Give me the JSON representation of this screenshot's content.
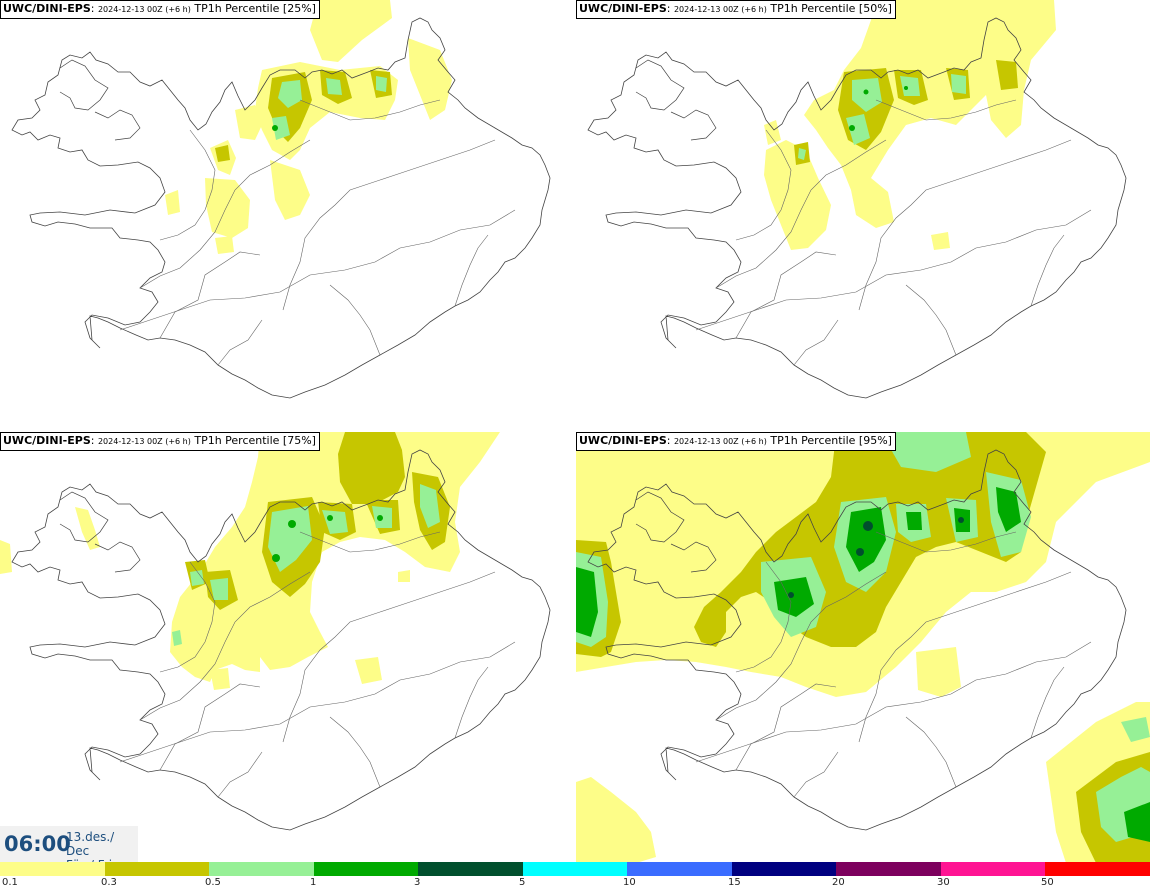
{
  "panels": [
    {
      "model": "UWC/DINI-EPS",
      "date_run": "2024-12-13 00Z (+6 h)",
      "title": "TP1h Percentile [25%]"
    },
    {
      "model": "UWC/DINI-EPS",
      "date_run": "2024-12-13 00Z (+6 h)",
      "title": "TP1h Percentile [50%]"
    },
    {
      "model": "UWC/DINI-EPS",
      "date_run": "2024-12-13 00Z (+6 h)",
      "title": "TP1h Percentile [75%]"
    },
    {
      "model": "UWC/DINI-EPS",
      "date_run": "2024-12-13 00Z (+6 h)",
      "title": "TP1h Percentile [95%]"
    }
  ],
  "time_box": {
    "time": "06:00",
    "date_line1": "13.des./ Dec",
    "date_line2": "Fös./ Fri"
  },
  "legend": {
    "labels": [
      "0.1",
      "0.3",
      "0.5",
      "1",
      "3",
      "5",
      "10",
      "15",
      "20",
      "30",
      "50"
    ],
    "colors": [
      "#fdfd88",
      "#c6c600",
      "#96f096",
      "#00aa00",
      "#004f2d",
      "#00ffff",
      "#3a6cff",
      "#000080",
      "#7d005e",
      "#ff1493",
      "#ff0000"
    ]
  },
  "colors": {
    "l1": "#fdfd88",
    "l2": "#c6c600",
    "l3": "#96f096",
    "l4": "#00aa00",
    "l5": "#004f2d",
    "coast": "#444444",
    "text": "#1d4e7e"
  }
}
